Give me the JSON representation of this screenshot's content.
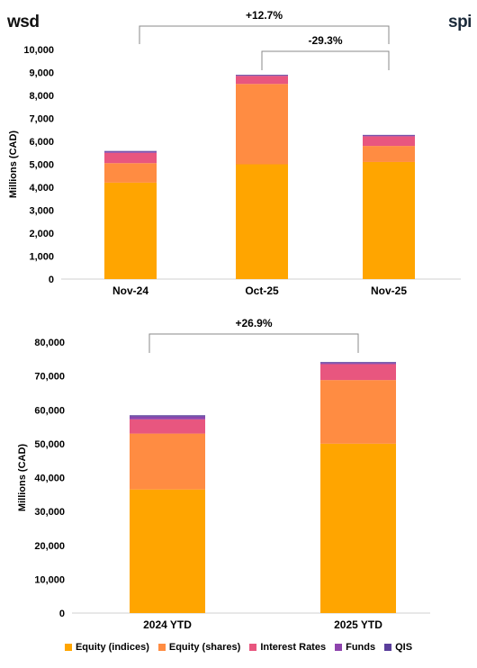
{
  "logos": {
    "left": "wsd",
    "right": "spi"
  },
  "colors": {
    "equity_indices": "#FFA500",
    "equity_shares": "#FF8C42",
    "interest_rates": "#E8567F",
    "funds": "#8E44AD",
    "qis": "#5A3E9B"
  },
  "chart_data": [
    {
      "type": "bar",
      "stacked": true,
      "categories": [
        "Nov-24",
        "Oct-25",
        "Nov-25"
      ],
      "series": [
        {
          "name": "Equity (indices)",
          "values": [
            4200,
            5000,
            5100
          ]
        },
        {
          "name": "Equity (shares)",
          "values": [
            850,
            3500,
            700
          ]
        },
        {
          "name": "Interest Rates",
          "values": [
            450,
            350,
            420
          ]
        },
        {
          "name": "Funds",
          "values": [
            40,
            20,
            30
          ]
        },
        {
          "name": "QIS",
          "values": [
            40,
            30,
            30
          ]
        }
      ],
      "ylabel": "Millions (CAD)",
      "ylim": [
        0,
        10000
      ],
      "yticks": [
        "0",
        "1,000",
        "2,000",
        "3,000",
        "4,000",
        "5,000",
        "6,000",
        "7,000",
        "8,000",
        "9,000",
        "10,000"
      ],
      "annotations": [
        "+12.7%",
        "-29.3%"
      ]
    },
    {
      "type": "bar",
      "stacked": true,
      "categories": [
        "2024 YTD",
        "2025 YTD"
      ],
      "series": [
        {
          "name": "Equity (indices)",
          "values": [
            36500,
            50000
          ]
        },
        {
          "name": "Equity (shares)",
          "values": [
            16500,
            18800
          ]
        },
        {
          "name": "Interest Rates",
          "values": [
            4200,
            4700
          ]
        },
        {
          "name": "Funds",
          "values": [
            800,
            300
          ]
        },
        {
          "name": "QIS",
          "values": [
            400,
            300
          ]
        }
      ],
      "ylabel": "Millions (CAD)",
      "ylim": [
        0,
        80000
      ],
      "yticks": [
        "0",
        "10,000",
        "20,000",
        "30,000",
        "40,000",
        "50,000",
        "60,000",
        "70,000",
        "80,000"
      ],
      "annotations": [
        "+26.9%"
      ]
    }
  ],
  "legend": [
    "Equity (indices)",
    "Equity (shares)",
    "Interest Rates",
    "Funds",
    "QIS"
  ]
}
